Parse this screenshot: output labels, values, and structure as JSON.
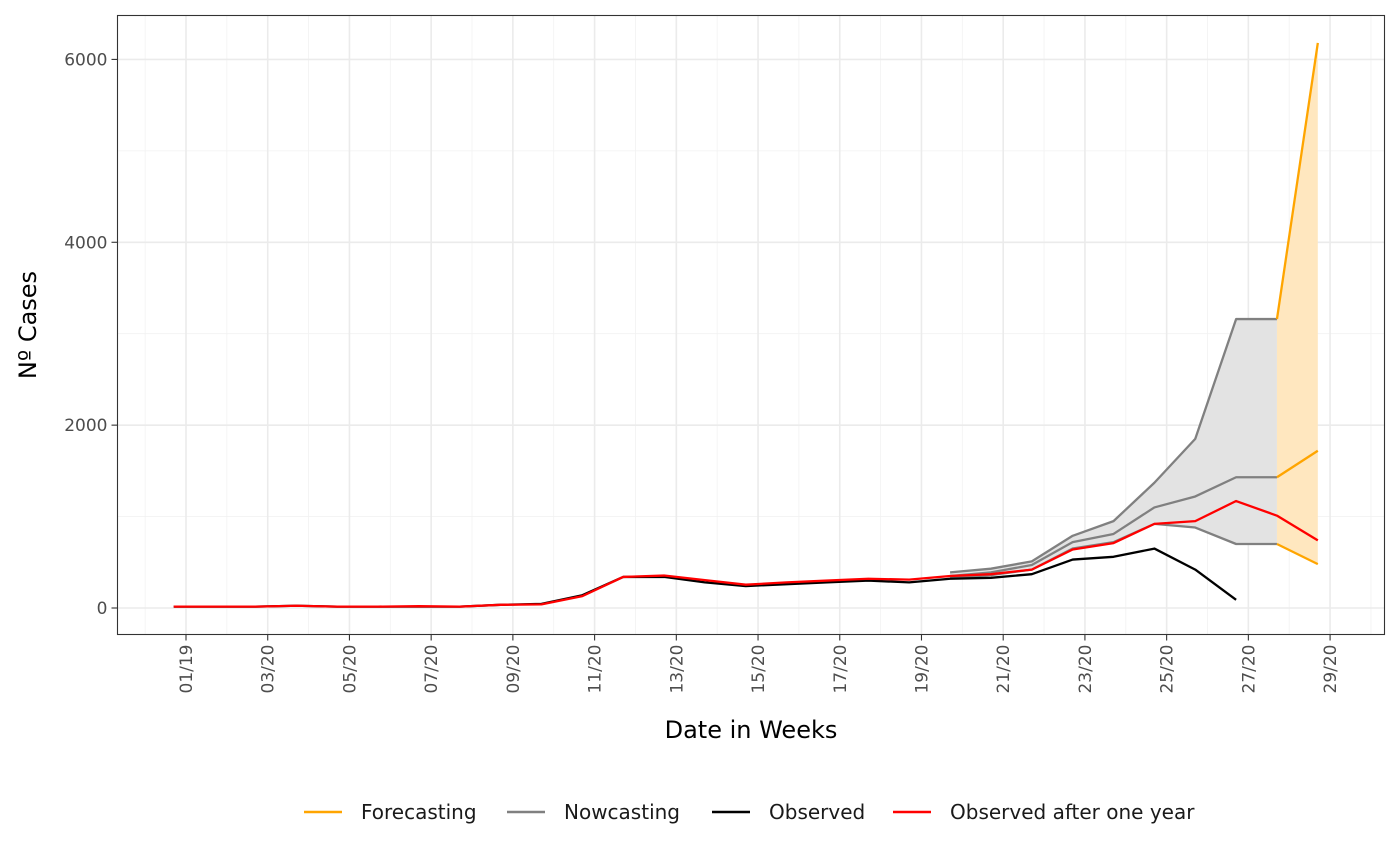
{
  "chart_data": {
    "type": "line",
    "title": "",
    "xlabel": "Date in Weeks",
    "ylabel": "Nº Cases",
    "ylim": [
      -280,
      6500
    ],
    "y_ticks": [
      0,
      2000,
      4000,
      6000
    ],
    "x_ticks": [
      "01/19",
      "03/20",
      "05/20",
      "07/20",
      "09/20",
      "11/20",
      "13/20",
      "15/20",
      "17/20",
      "19/20",
      "21/20",
      "23/20",
      "25/20",
      "27/20",
      "29/20"
    ],
    "grid": true,
    "legend_position": "bottom",
    "colors": {
      "forecasting": "#FFA500",
      "nowcasting": "#808080",
      "observed": "#000000",
      "observed_after_one_year": "#FF0000",
      "nowcasting_band": "#e3e3e3",
      "forecasting_band": "#FFE7BF"
    },
    "series": [
      {
        "name": "Forecasting",
        "type": "ribbon",
        "weeks": [
          27.7,
          28.7
        ],
        "median": [
          1430,
          1720
        ],
        "lower": [
          700,
          480
        ],
        "upper": [
          3160,
          6180
        ]
      },
      {
        "name": "Nowcasting",
        "type": "ribbon",
        "weeks": [
          19.7,
          20.7,
          21.7,
          22.7,
          23.7,
          24.7,
          25.7,
          26.7,
          27.7
        ],
        "median": [
          350,
          390,
          470,
          720,
          810,
          1100,
          1220,
          1430,
          1430
        ],
        "lower": [
          330,
          360,
          420,
          650,
          720,
          920,
          880,
          700,
          700
        ],
        "upper": [
          390,
          430,
          510,
          790,
          950,
          1370,
          1850,
          3160,
          3160
        ]
      },
      {
        "name": "Observed",
        "type": "line",
        "weeks": [
          0.7,
          1.7,
          2.7,
          3.7,
          4.7,
          5.7,
          6.7,
          7.7,
          8.7,
          9.7,
          10.7,
          11.7,
          12.7,
          13.7,
          14.7,
          15.7,
          16.7,
          17.7,
          18.7,
          19.7,
          20.7,
          21.7,
          22.7,
          23.7,
          24.7,
          25.7,
          26.7,
          27.7
        ],
        "values": [
          15,
          15,
          15,
          25,
          15,
          15,
          15,
          15,
          35,
          45,
          140,
          340,
          340,
          280,
          240,
          260,
          280,
          300,
          280,
          320,
          330,
          370,
          530,
          560,
          650,
          420,
          90,
          null
        ]
      },
      {
        "name": "Observed after one year",
        "type": "line",
        "weeks": [
          0.7,
          1.7,
          2.7,
          3.7,
          4.7,
          5.7,
          6.7,
          7.7,
          8.7,
          9.7,
          10.7,
          11.7,
          12.7,
          13.7,
          14.7,
          15.7,
          16.7,
          17.7,
          18.7,
          19.7,
          20.7,
          21.7,
          22.7,
          23.7,
          24.7,
          25.7,
          26.7,
          27.7,
          28.7,
          29.7
        ],
        "values": [
          15,
          15,
          15,
          25,
          15,
          15,
          20,
          15,
          35,
          40,
          130,
          340,
          355,
          305,
          255,
          280,
          300,
          320,
          310,
          350,
          370,
          420,
          640,
          710,
          920,
          950,
          1170,
          1010,
          740,
          null
        ]
      }
    ]
  }
}
